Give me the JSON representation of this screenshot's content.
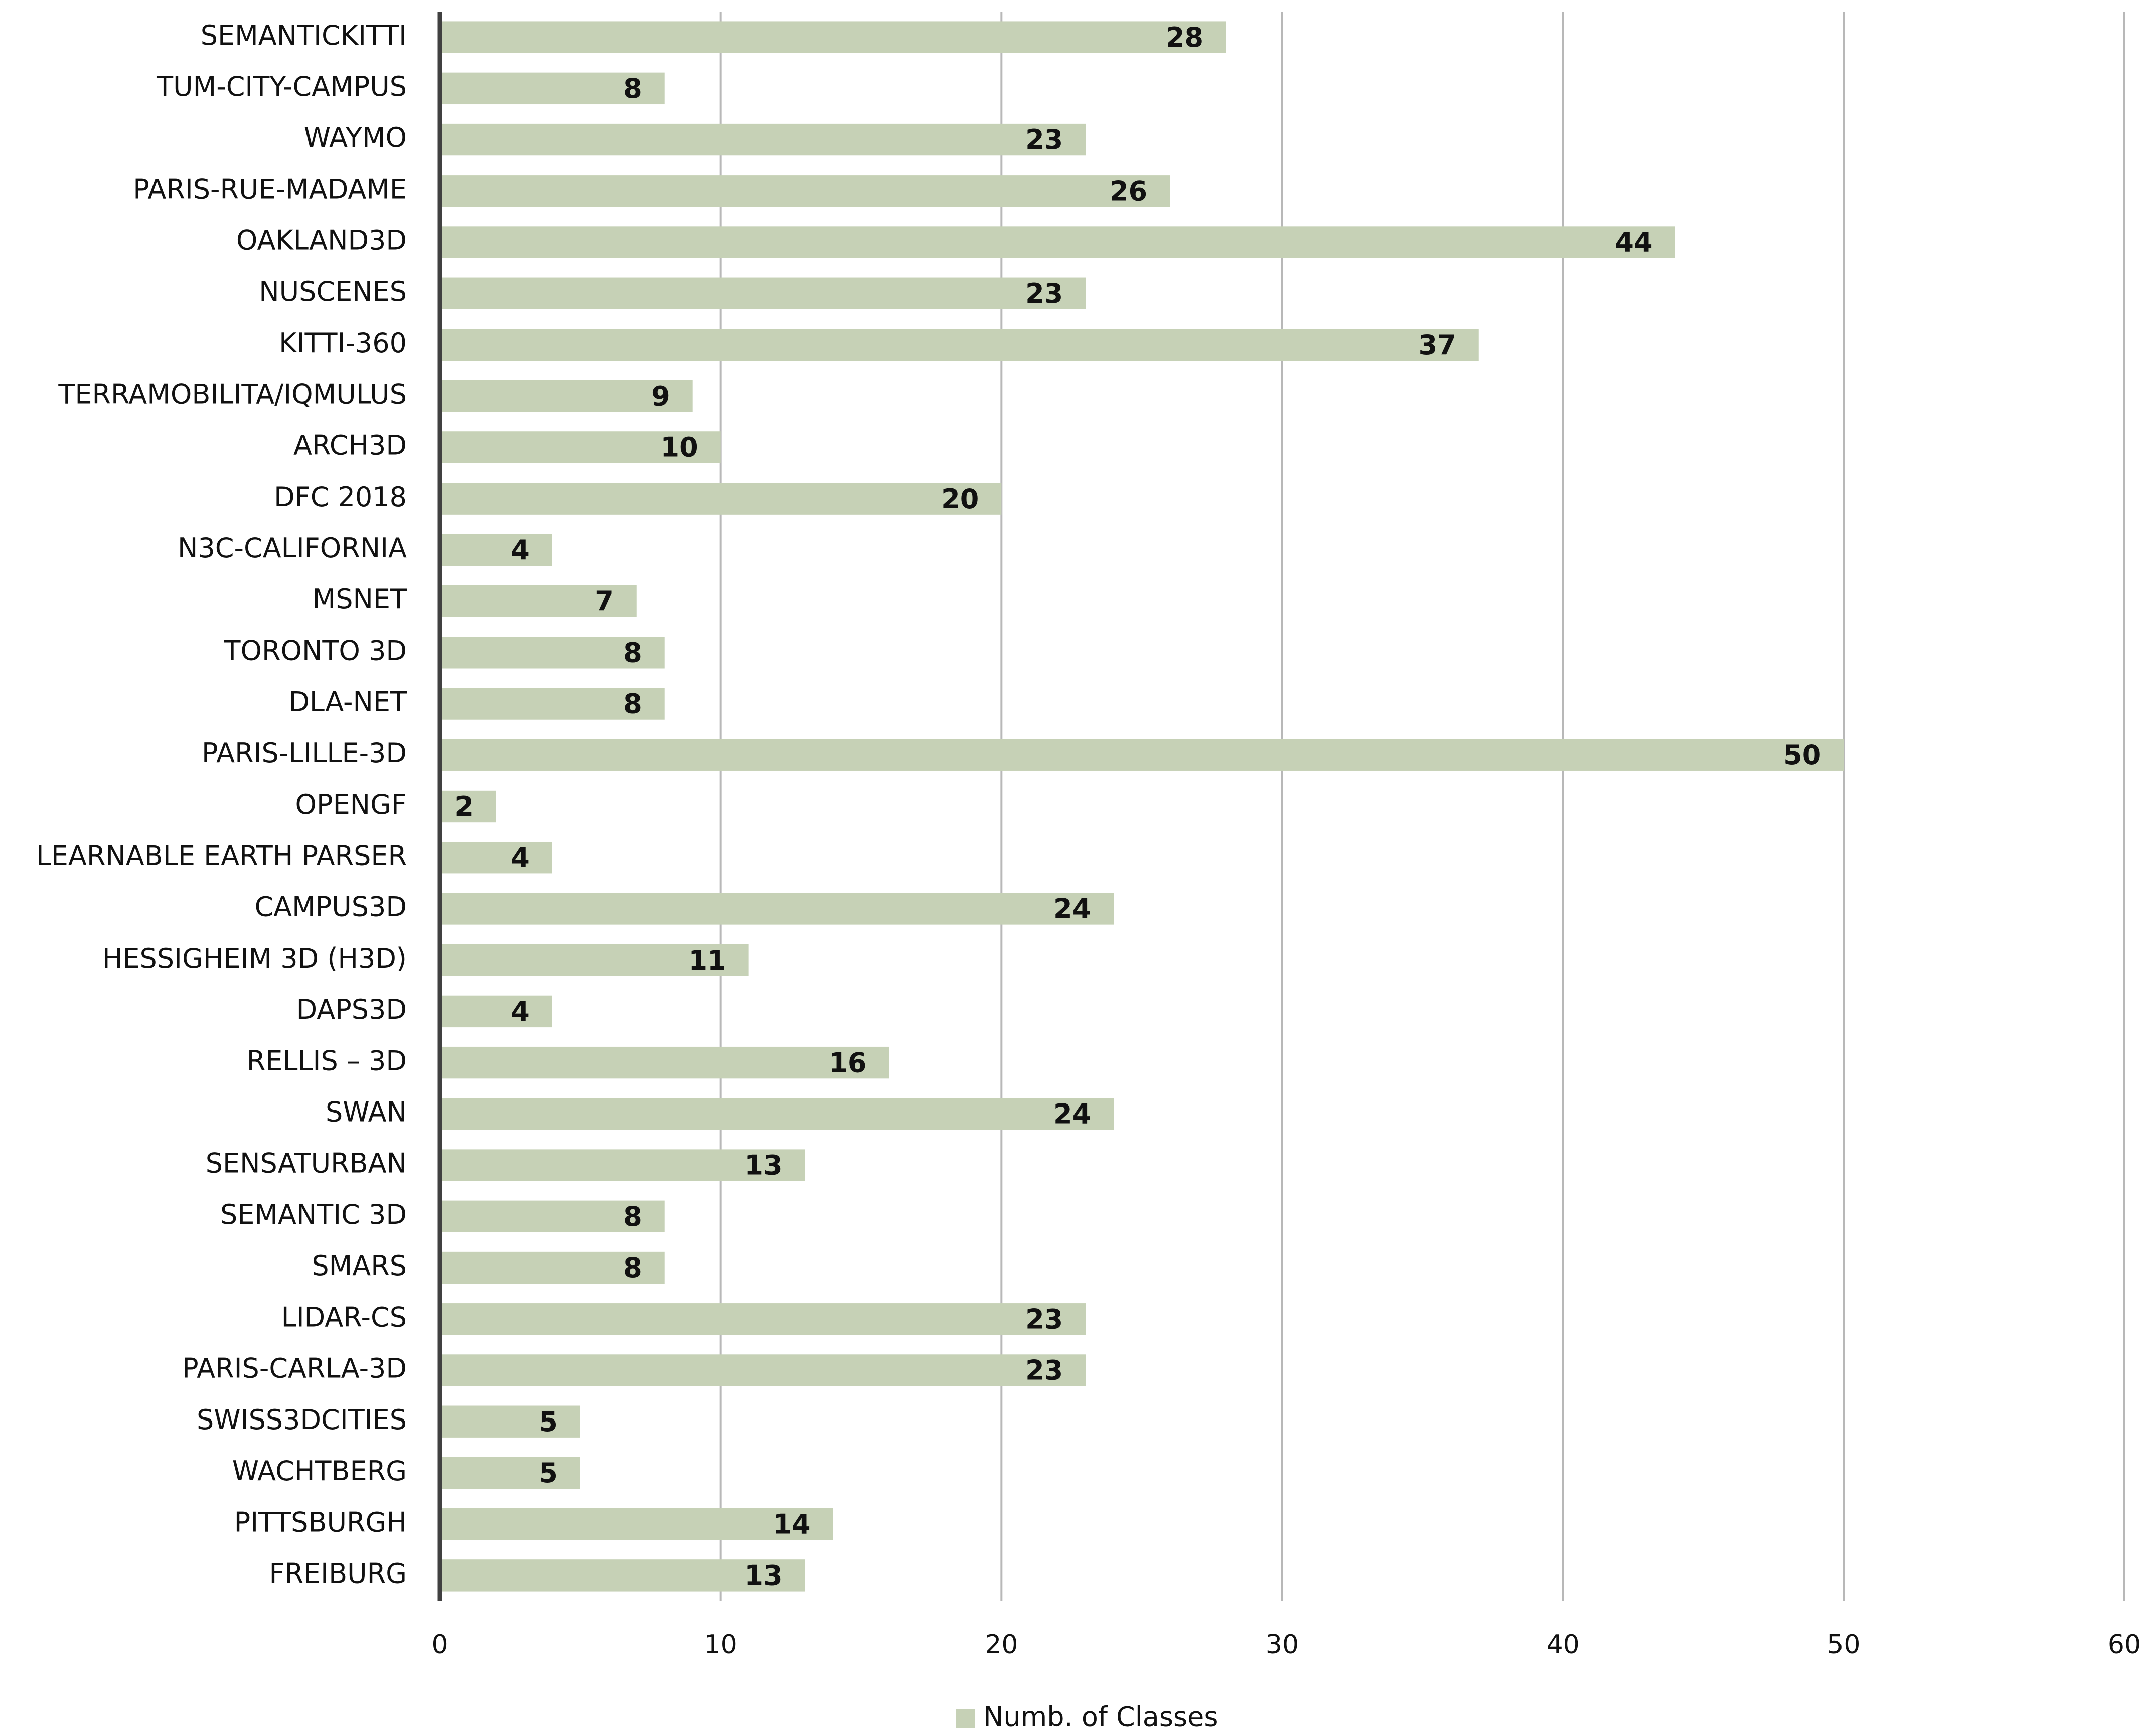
{
  "chart_data": {
    "type": "bar",
    "orientation": "horizontal",
    "categories": [
      "SEMANTICKITTI",
      "TUM-CITY-CAMPUS",
      "WAYMO",
      "PARIS-RUE-MADAME",
      "OAKLAND3D",
      "NUSCENES",
      "KITTI-360",
      "TERRAMOBILITA/IQMULUS",
      "ARCH3D",
      "DFC 2018",
      "N3C-CALIFORNIA",
      "MSNET",
      "TORONTO 3D",
      "DLA-NET",
      "PARIS-LILLE-3D",
      "OPENGF",
      "LEARNABLE EARTH PARSER",
      "CAMPUS3D",
      "HESSIGHEIM 3D (H3D)",
      "DAPS3D",
      "RELLIS – 3D",
      "SWAN",
      "SENSATURBAN",
      "SEMANTIC 3D",
      "SMARS",
      "LIDAR-CS",
      "PARIS-CARLA-3D",
      "SWISS3DCITIES",
      "WACHTBERG",
      "PITTSBURGH",
      "FREIBURG"
    ],
    "series": [
      {
        "name": "Numb. of Classes",
        "color": "#c6d1b6",
        "values": [
          28,
          8,
          23,
          26,
          44,
          23,
          37,
          9,
          10,
          20,
          4,
          7,
          8,
          8,
          50,
          2,
          4,
          24,
          11,
          4,
          16,
          24,
          13,
          8,
          8,
          23,
          23,
          5,
          5,
          14,
          13
        ]
      }
    ],
    "xlim": [
      0,
      60
    ],
    "xticks": [
      0,
      10,
      20,
      30,
      40,
      50,
      60
    ],
    "grid": true,
    "legend": "bottom"
  }
}
